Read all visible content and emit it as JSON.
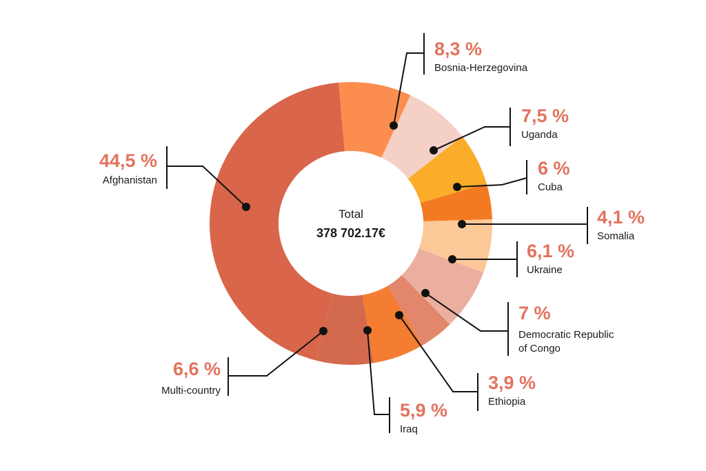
{
  "chart_data": {
    "type": "pie",
    "title": "",
    "center_label": "Total",
    "center_value": "378 702.17€",
    "slices": [
      {
        "name": "Bosnia-Herzegovina",
        "value": 8.3,
        "label": "8,3 %",
        "color": "#fb8e4e"
      },
      {
        "name": "Uganda",
        "value": 7.5,
        "label": "7,5 %",
        "color": "#f4d0c6"
      },
      {
        "name": "Cuba",
        "value": 6,
        "label": "6 %",
        "color": "#fbad2a"
      },
      {
        "name": "Somalia",
        "value": 4.1,
        "label": "4,1 %",
        "color": "#f47a22"
      },
      {
        "name": "Ukraine",
        "value": 6.1,
        "label": "6,1 %",
        "color": "#fdc897"
      },
      {
        "name": "Democratic Republic of Congo",
        "value": 7,
        "label": "7 %",
        "color": "#ebaf9f"
      },
      {
        "name": "Ethiopia",
        "value": 3.9,
        "label": "3,9 %",
        "color": "#e2876b"
      },
      {
        "name": "Iraq",
        "value": 5.9,
        "label": "5,9 %",
        "color": "#f47d32"
      },
      {
        "name": "Multi-country",
        "value": 6.6,
        "label": "6,6 %",
        "color": "#d36a4e"
      },
      {
        "name": "Afghanistan",
        "value": 44.5,
        "label": "44,5 %",
        "color": "#d9654a"
      }
    ]
  }
}
